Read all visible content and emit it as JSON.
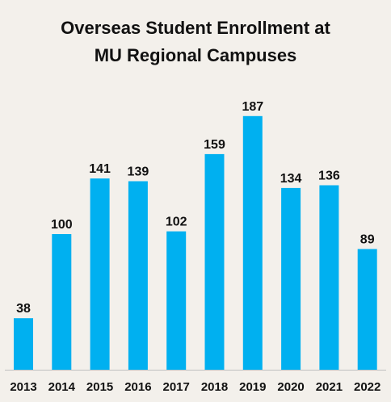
{
  "chart_data": {
    "type": "bar",
    "title_lines": [
      "Overseas Student Enrollment at",
      "MU Regional Campuses"
    ],
    "categories": [
      "2013",
      "2014",
      "2015",
      "2016",
      "2017",
      "2018",
      "2019",
      "2020",
      "2021",
      "2022"
    ],
    "values": [
      38,
      100,
      141,
      139,
      102,
      159,
      187,
      134,
      136,
      89
    ],
    "data_labels": [
      "38",
      "100",
      "141",
      "139",
      "102",
      "159",
      "187",
      "134",
      "136",
      "89"
    ],
    "xlabel": "",
    "ylabel": "",
    "ylim": [
      0,
      200
    ],
    "grid": false,
    "legend": "none",
    "bar_color": "#00b0f0",
    "axis_color": "#bfbfbf"
  }
}
